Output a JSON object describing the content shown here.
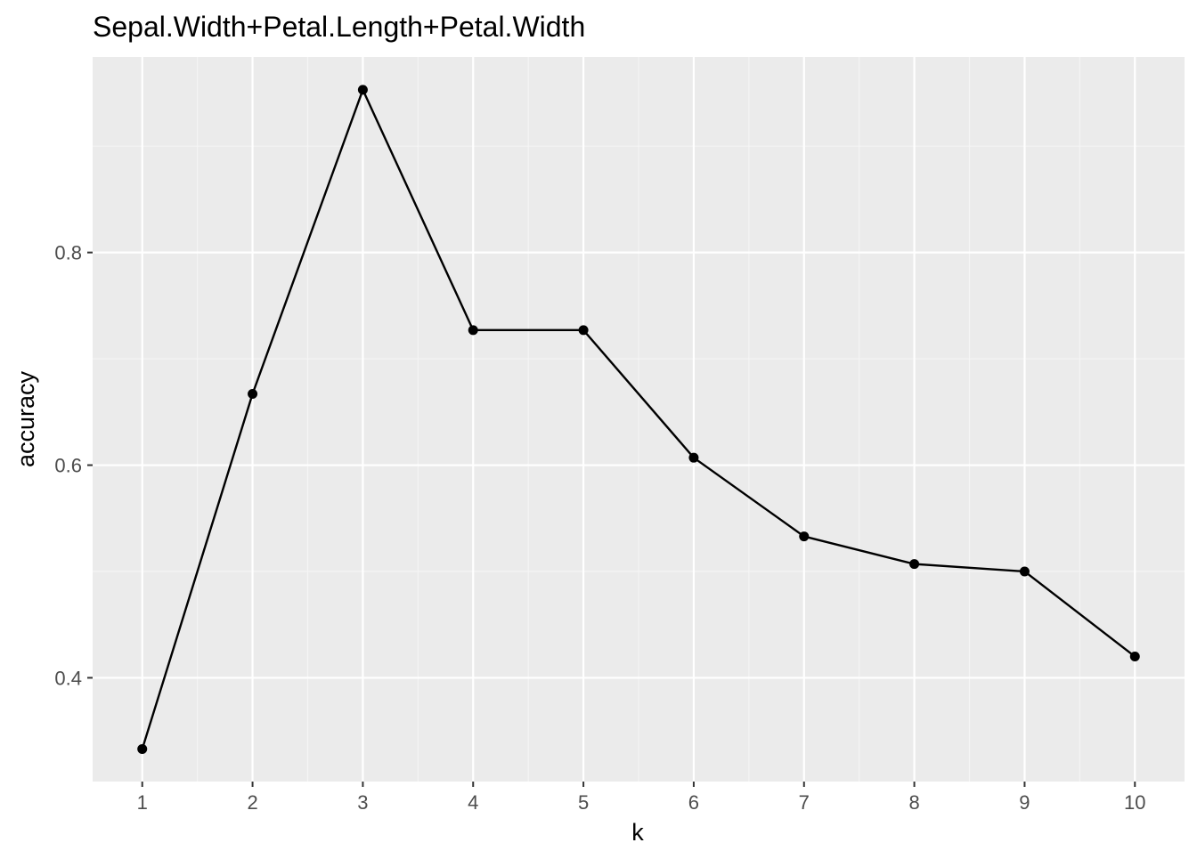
{
  "chart_data": {
    "type": "line",
    "title": "Sepal.Width+Petal.Length+Petal.Width",
    "xlabel": "k",
    "ylabel": "accuracy",
    "x": [
      1,
      2,
      3,
      4,
      5,
      6,
      7,
      8,
      9,
      10
    ],
    "series": [
      {
        "values": [
          0.333,
          0.667,
          0.953,
          0.727,
          0.727,
          0.607,
          0.533,
          0.507,
          0.5,
          0.42
        ],
        "color": "#000000"
      }
    ],
    "xlim": [
      0.55,
      10.45
    ],
    "ylim": [
      0.3024,
      0.9839
    ],
    "x_ticks": [
      1,
      2,
      3,
      4,
      5,
      6,
      7,
      8,
      9,
      10
    ],
    "x_tick_labels": [
      "1",
      "2",
      "3",
      "4",
      "5",
      "6",
      "7",
      "8",
      "9",
      "10"
    ],
    "y_ticks": [
      0.4,
      0.6,
      0.8
    ],
    "y_tick_labels": [
      "0.4",
      "0.6",
      "0.8"
    ],
    "y_minor_ticks": [
      0.5,
      0.7,
      0.9
    ],
    "grid": true,
    "legend": "none",
    "colors": {
      "panel_background": "#ebebeb",
      "grid_major": "#ffffff",
      "grid_minor": "#f5f5f5",
      "line": "#000000",
      "point": "#000000",
      "tick_mark": "#333333",
      "tick_label": "#4d4d4d"
    }
  }
}
